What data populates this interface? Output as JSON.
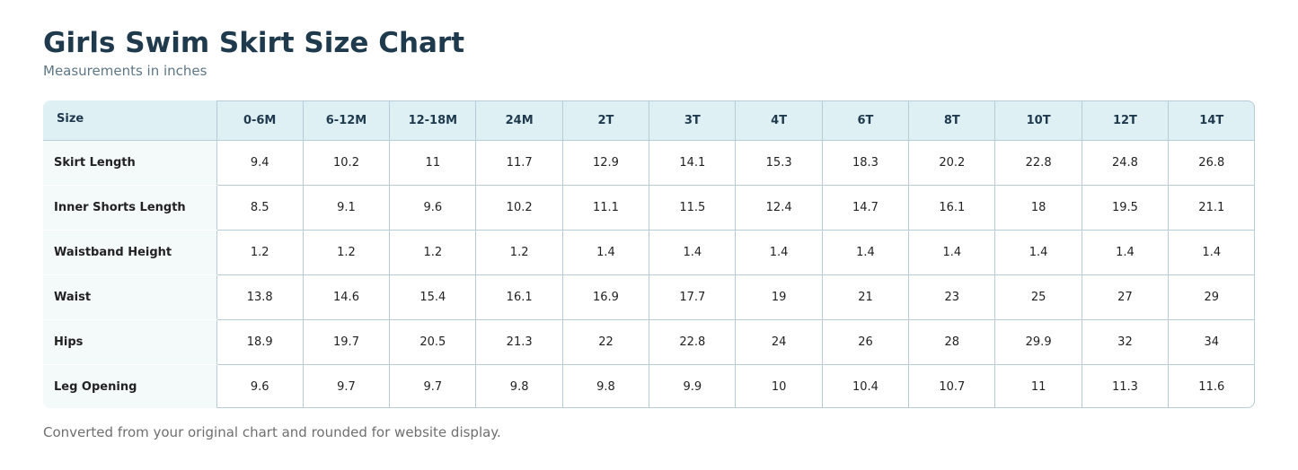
{
  "title": "Girls Swim Skirt Size Chart",
  "subtitle": "Measurements in inches",
  "footnote": "Converted from your original chart and rounded for website display.",
  "colors": {
    "title": "#1f3a4d",
    "header_bg": "#dff0f5",
    "label_bg": "#f4f9fa",
    "grid": "#b8ccd6"
  },
  "table": {
    "corner_label": "Size",
    "sizes": [
      "0-6M",
      "6-12M",
      "12-18M",
      "24M",
      "2T",
      "3T",
      "4T",
      "6T",
      "8T",
      "10T",
      "12T",
      "14T"
    ],
    "rows": [
      {
        "label": "Skirt Length",
        "values": [
          "9.4",
          "10.2",
          "11",
          "11.7",
          "12.9",
          "14.1",
          "15.3",
          "18.3",
          "20.2",
          "22.8",
          "24.8",
          "26.8"
        ]
      },
      {
        "label": "Inner Shorts Length",
        "values": [
          "8.5",
          "9.1",
          "9.6",
          "10.2",
          "11.1",
          "11.5",
          "12.4",
          "14.7",
          "16.1",
          "18",
          "19.5",
          "21.1"
        ]
      },
      {
        "label": "Waistband Height",
        "values": [
          "1.2",
          "1.2",
          "1.2",
          "1.2",
          "1.4",
          "1.4",
          "1.4",
          "1.4",
          "1.4",
          "1.4",
          "1.4",
          "1.4"
        ]
      },
      {
        "label": "Waist",
        "values": [
          "13.8",
          "14.6",
          "15.4",
          "16.1",
          "16.9",
          "17.7",
          "19",
          "21",
          "23",
          "25",
          "27",
          "29"
        ]
      },
      {
        "label": "Hips",
        "values": [
          "18.9",
          "19.7",
          "20.5",
          "21.3",
          "22",
          "22.8",
          "24",
          "26",
          "28",
          "29.9",
          "32",
          "34"
        ]
      },
      {
        "label": "Leg Opening",
        "values": [
          "9.6",
          "9.7",
          "9.7",
          "9.8",
          "9.8",
          "9.9",
          "10",
          "10.4",
          "10.7",
          "11",
          "11.3",
          "11.6"
        ]
      }
    ]
  }
}
